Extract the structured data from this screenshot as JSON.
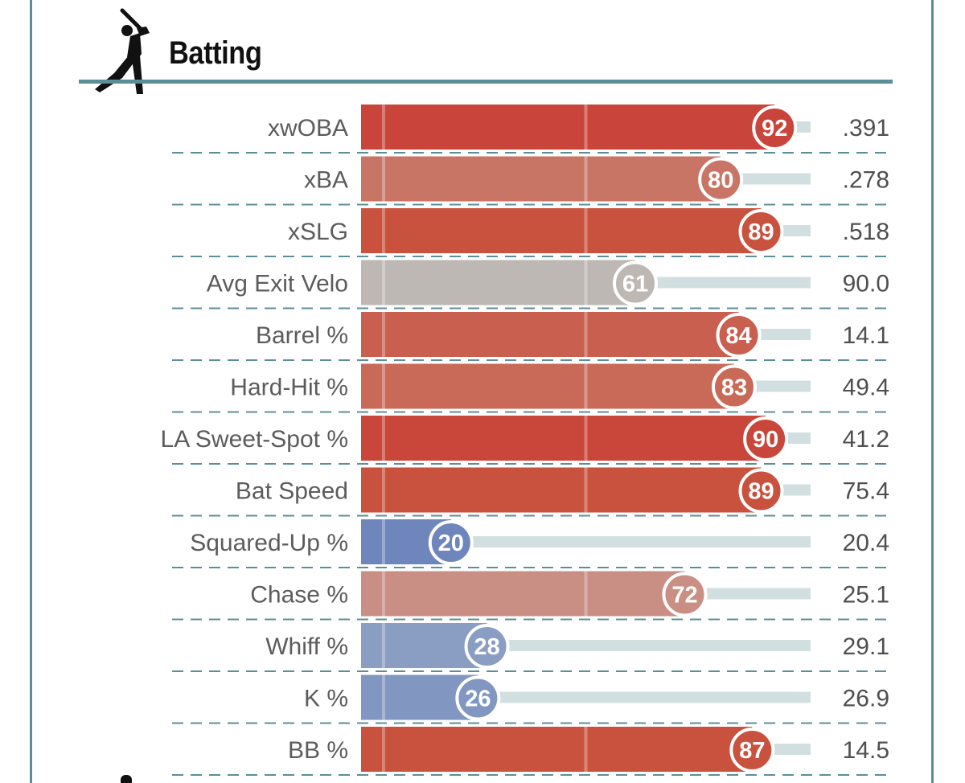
{
  "header": {
    "title": "Batting",
    "icon": "batter-silhouette-icon"
  },
  "colors": {
    "frame": "#5b8f97",
    "track": "#d2dfe1",
    "elite_red": "#c9483c",
    "above_avg_red": "#cc7364",
    "light_red": "#c88f84",
    "average_gray": "#bdb8b4",
    "below_avg_blue": "#6f86bd",
    "light_blue": "#8b9dc3"
  },
  "chart_data": {
    "type": "bar",
    "orientation": "horizontal",
    "title": "Batting",
    "xlim": [
      0,
      100
    ],
    "series": [
      {
        "categories": [
          "xwOBA",
          "xBA",
          "xSLG",
          "Avg Exit Velo",
          "Barrel %",
          "Hard-Hit %",
          "LA Sweet-Spot %",
          "Bat Speed",
          "Squared-Up %",
          "Chase %",
          "Whiff %",
          "K %",
          "BB %"
        ],
        "percentiles": [
          92,
          80,
          89,
          61,
          84,
          83,
          90,
          89,
          20,
          72,
          28,
          26,
          87
        ],
        "stat_values": [
          ".391",
          ".278",
          ".518",
          "90.0",
          "14.1",
          "49.4",
          "41.2",
          "75.4",
          "20.4",
          "25.1",
          "29.1",
          "26.9",
          "14.5"
        ],
        "bar_colors": [
          "#c9453b",
          "#c87565",
          "#c9523f",
          "#bdb8b4",
          "#c9604f",
          "#c96a58",
          "#c9463b",
          "#c9523f",
          "#6f86bd",
          "#c98f84",
          "#8a9dc3",
          "#8197c2",
          "#c9523f"
        ]
      }
    ]
  }
}
